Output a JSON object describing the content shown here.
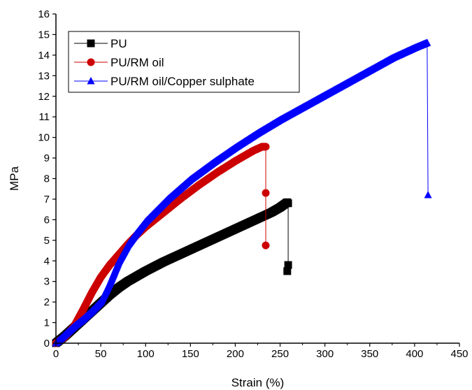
{
  "chart_data": {
    "type": "line",
    "title": "",
    "xlabel": "Strain (%)",
    "ylabel": "MPa",
    "xlim": [
      0,
      450
    ],
    "ylim": [
      0,
      16
    ],
    "xticks": [
      0,
      50,
      100,
      150,
      200,
      250,
      300,
      350,
      400,
      450
    ],
    "yticks": [
      0,
      1,
      2,
      3,
      4,
      5,
      6,
      7,
      8,
      9,
      10,
      11,
      12,
      13,
      14,
      15,
      16
    ],
    "grid": false,
    "legend_position": "top-left",
    "series": [
      {
        "name": "PU",
        "color": "#000000",
        "marker": "square",
        "x": [
          0,
          10,
          20,
          30,
          40,
          50,
          60,
          70,
          80,
          90,
          100,
          120,
          140,
          160,
          180,
          200,
          220,
          240,
          250,
          258,
          259,
          259,
          258
        ],
        "y": [
          0,
          0.35,
          0.75,
          1.15,
          1.55,
          1.95,
          2.35,
          2.7,
          3.0,
          3.25,
          3.5,
          3.95,
          4.35,
          4.75,
          5.15,
          5.55,
          5.95,
          6.35,
          6.6,
          6.85,
          6.8,
          3.8,
          3.5
        ]
      },
      {
        "name": "PU/RM oil",
        "color": "#cc0000",
        "marker": "circle",
        "x": [
          0,
          10,
          20,
          30,
          40,
          50,
          60,
          70,
          80,
          90,
          100,
          120,
          140,
          160,
          180,
          200,
          220,
          230,
          234,
          234,
          234
        ],
        "y": [
          0,
          0.3,
          0.8,
          1.6,
          2.45,
          3.2,
          3.8,
          4.3,
          4.8,
          5.25,
          5.65,
          6.35,
          7.05,
          7.7,
          8.3,
          8.85,
          9.35,
          9.55,
          9.55,
          7.3,
          4.75
        ]
      },
      {
        "name": "PU/RM oil/Copper sulphate",
        "color": "#0000ff",
        "marker": "triangle",
        "x": [
          0,
          10,
          20,
          30,
          40,
          50,
          60,
          70,
          80,
          90,
          100,
          125,
          150,
          175,
          200,
          225,
          250,
          275,
          300,
          325,
          350,
          375,
          400,
          414,
          415
        ],
        "y": [
          0,
          0.4,
          0.8,
          1.15,
          1.55,
          2.0,
          2.9,
          3.95,
          4.75,
          5.35,
          5.9,
          7.0,
          7.95,
          8.75,
          9.5,
          10.2,
          10.85,
          11.45,
          12.05,
          12.65,
          13.25,
          13.85,
          14.35,
          14.6,
          7.2
        ]
      }
    ]
  }
}
